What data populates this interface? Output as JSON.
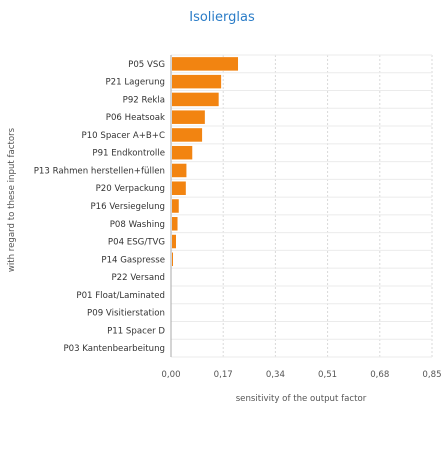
{
  "chart_data": {
    "type": "bar",
    "orientation": "horizontal",
    "title": "Isolierglas",
    "xlabel": "sensitivity of the output factor",
    "ylabel": "with regard to these input factors",
    "categories": [
      "P05 VSG",
      "P21 Lagerung",
      "P92 Rekla",
      "P06 Heatsoak",
      "P10 Spacer A+B+C",
      "P91 Endkontrolle",
      "P13 Rahmen herstellen+füllen",
      "P20 Verpackung",
      "P16 Versiegelung",
      "P08 Washing",
      "P04 ESG/TVG",
      "P14 Gaspresse",
      "P22 Versand",
      "P01 Float/Laminated",
      "P09 Visitierstation",
      "P11 Spacer D",
      "P03 Kantenbearbeitung"
    ],
    "values": [
      0.215,
      0.16,
      0.152,
      0.107,
      0.098,
      0.066,
      0.047,
      0.045,
      0.022,
      0.018,
      0.013,
      0.003,
      0,
      0,
      0,
      0,
      0
    ],
    "xticks": [
      "0,00",
      "0,17",
      "0,34",
      "0,51",
      "0,68",
      "0,85"
    ],
    "xlim": [
      0,
      0.85
    ],
    "bar_color": "#f28411",
    "grid": true
  }
}
